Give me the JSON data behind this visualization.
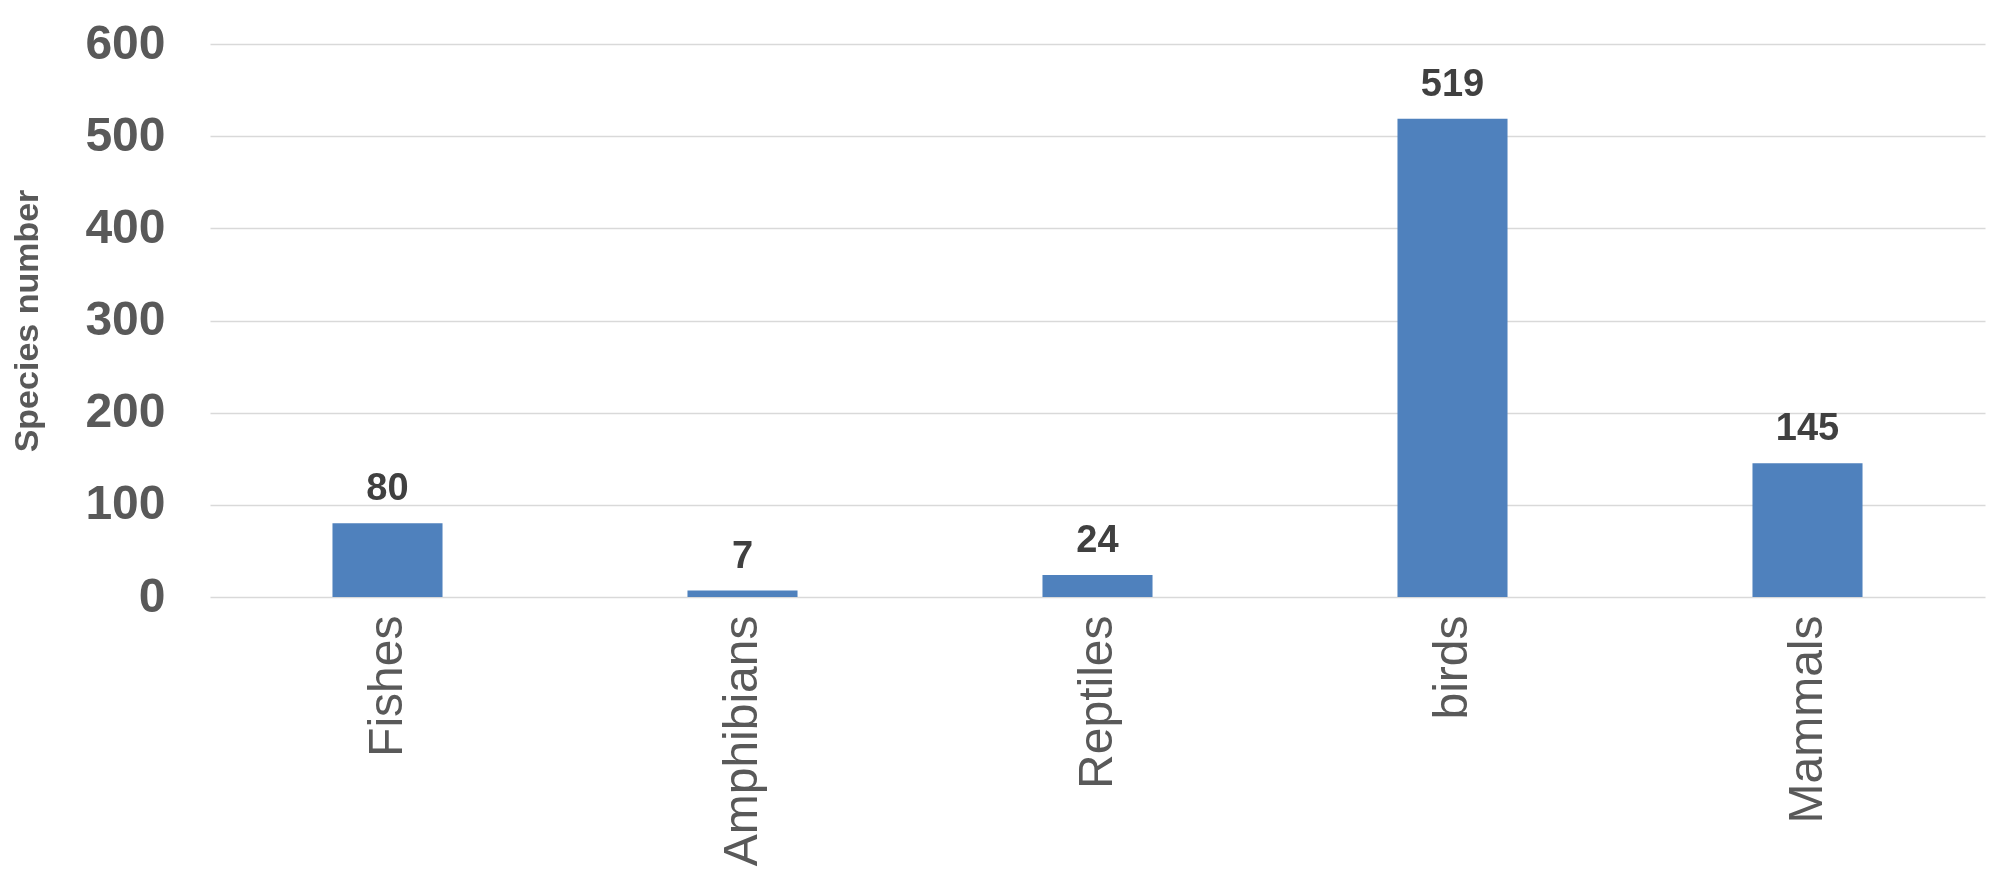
{
  "chart_data": {
    "type": "bar",
    "ylabel": "Species number",
    "categories": [
      "Fishes",
      "Amphibians",
      "Reptiles",
      "birds",
      "Mammals"
    ],
    "values": [
      80,
      7,
      24,
      519,
      145
    ],
    "color": "#4f81bd",
    "ylim": [
      0,
      600
    ],
    "yticks": [
      0,
      100,
      200,
      300,
      400,
      500,
      600
    ],
    "grid": "y",
    "data_labels": true
  }
}
